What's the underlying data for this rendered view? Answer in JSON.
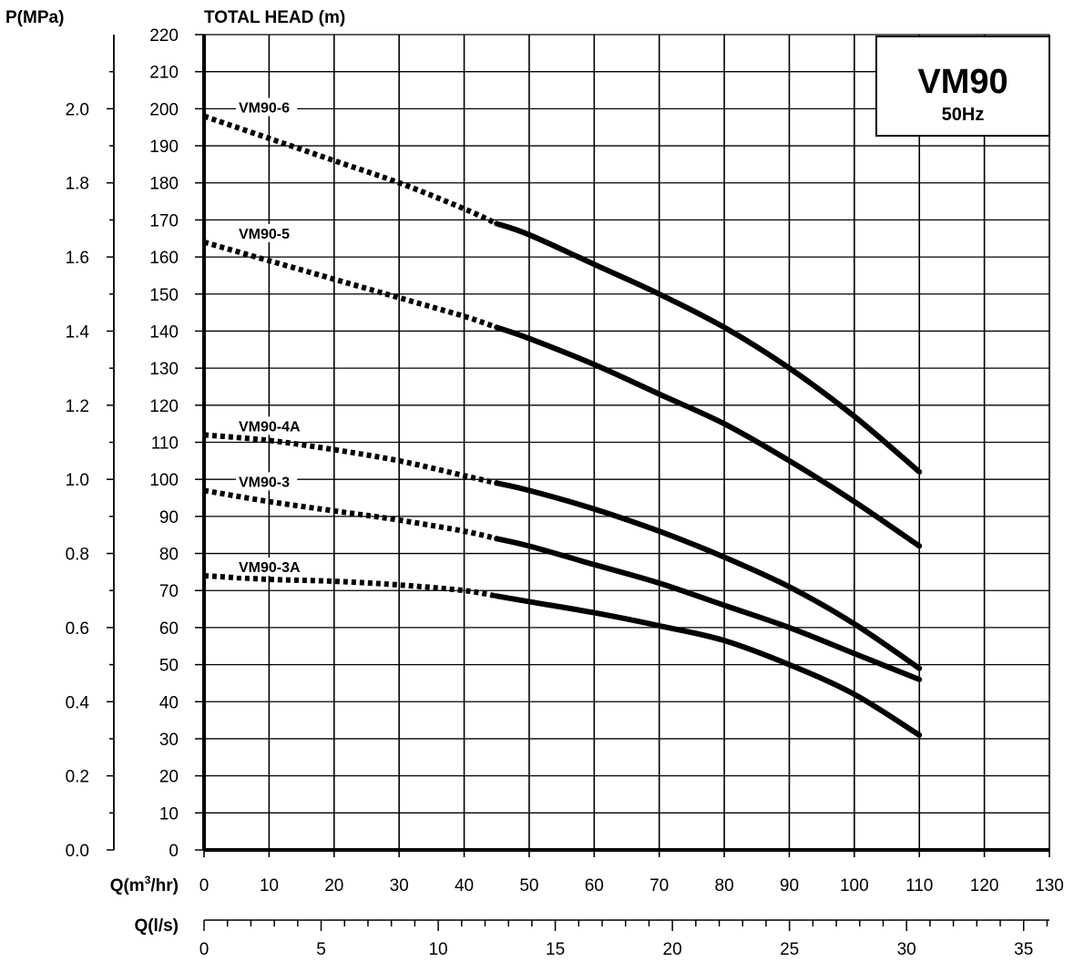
{
  "chart_data": {
    "type": "line",
    "title": "VM90",
    "subtitle": "50Hz",
    "ylabel": "TOTAL HEAD (m)",
    "ylabel_secondary": "P(MPa)",
    "xlabel": "Q(m³/hr)",
    "xlabel_secondary": "Q(l/s)",
    "xlim": [
      0,
      130
    ],
    "ylim": [
      0,
      220
    ],
    "ylim_secondary": [
      0,
      2.2
    ],
    "xlim_secondary": [
      0,
      36.1
    ],
    "x_ticks": [
      0,
      10,
      20,
      30,
      40,
      50,
      60,
      70,
      80,
      90,
      100,
      110,
      120,
      130
    ],
    "y_ticks": [
      0,
      10,
      20,
      30,
      40,
      50,
      60,
      70,
      80,
      90,
      100,
      110,
      120,
      130,
      140,
      150,
      160,
      170,
      180,
      190,
      200,
      210,
      220
    ],
    "p_ticks": [
      "0.0",
      "0.2",
      "0.4",
      "0.6",
      "0.8",
      "1.0",
      "1.2",
      "1.4",
      "1.6",
      "1.8",
      "2.0"
    ],
    "q_ls_ticks": [
      0,
      5,
      10,
      15,
      20,
      25,
      30,
      35
    ],
    "grid": true,
    "series": [
      {
        "name": "VM90-6",
        "dotted": {
          "x": [
            0,
            10,
            20,
            30,
            40,
            45
          ],
          "y": [
            198,
            192,
            186,
            180,
            173,
            169
          ]
        },
        "solid": {
          "x": [
            45,
            50,
            60,
            70,
            80,
            90,
            100,
            110
          ],
          "y": [
            169,
            166,
            158,
            150,
            141,
            130,
            117,
            102
          ]
        }
      },
      {
        "name": "VM90-5",
        "dotted": {
          "x": [
            0,
            10,
            20,
            30,
            40,
            45
          ],
          "y": [
            164,
            159,
            154,
            149,
            144,
            141
          ]
        },
        "solid": {
          "x": [
            45,
            50,
            60,
            70,
            80,
            90,
            100,
            110
          ],
          "y": [
            141,
            138,
            131,
            123,
            115,
            105,
            94,
            82
          ]
        }
      },
      {
        "name": "VM90-4A",
        "dotted": {
          "x": [
            0,
            10,
            20,
            30,
            40,
            45
          ],
          "y": [
            112,
            110.5,
            108,
            105,
            101,
            99
          ]
        },
        "solid": {
          "x": [
            45,
            50,
            60,
            70,
            80,
            90,
            100,
            110
          ],
          "y": [
            99,
            97,
            92,
            86,
            79,
            71,
            61,
            49
          ]
        }
      },
      {
        "name": "VM90-3",
        "dotted": {
          "x": [
            0,
            10,
            20,
            30,
            40,
            45
          ],
          "y": [
            97,
            94,
            91.5,
            89,
            86,
            84
          ]
        },
        "solid": {
          "x": [
            45,
            50,
            60,
            70,
            80,
            90,
            100,
            110
          ],
          "y": [
            84,
            82,
            77,
            72,
            66,
            60,
            53,
            46
          ]
        }
      },
      {
        "name": "VM90-3A",
        "dotted": {
          "x": [
            0,
            10,
            20,
            30,
            40,
            45
          ],
          "y": [
            74,
            73,
            72.5,
            71.5,
            70,
            68.5
          ]
        },
        "solid": {
          "x": [
            45,
            50,
            60,
            70,
            80,
            90,
            100,
            110
          ],
          "y": [
            68.5,
            67,
            64,
            60.5,
            56.5,
            50,
            42,
            31
          ]
        }
      }
    ]
  }
}
